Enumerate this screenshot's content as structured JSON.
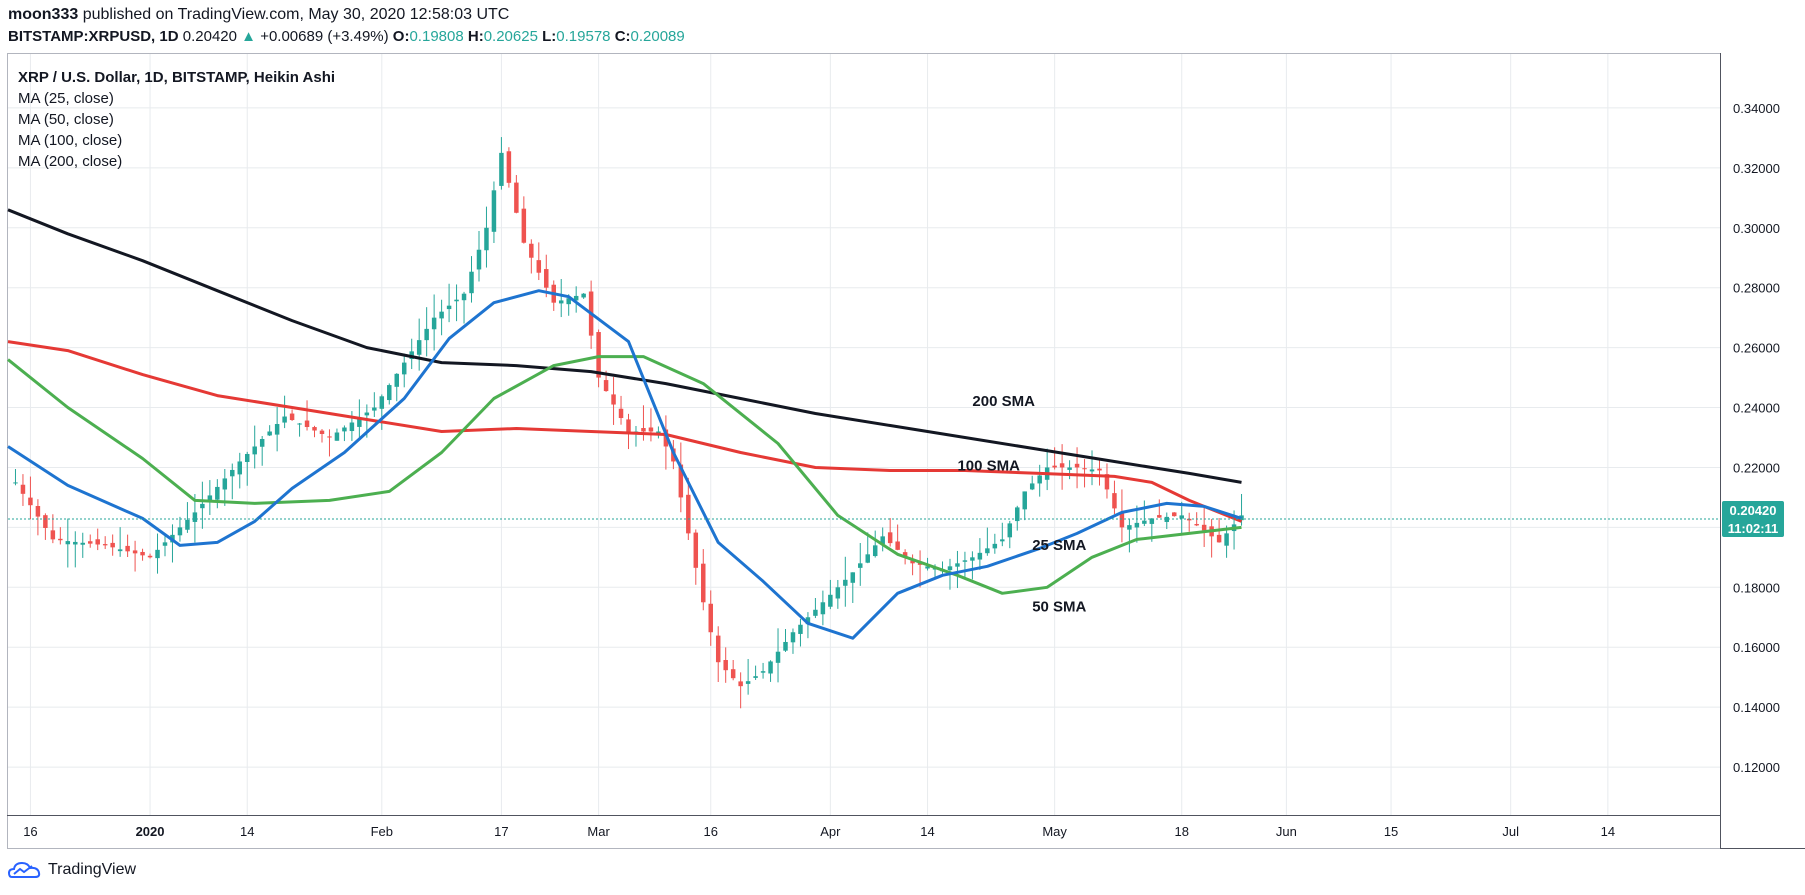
{
  "header": {
    "user": "moon333",
    "published": "published on TradingView.com, May 30, 2020 12:58:03 UTC",
    "symbol": "BITSTAMP:XRPUSD, 1D",
    "last": "0.20420",
    "change": "+0.00689 (+3.49%)",
    "o_label": "O:",
    "o": "0.19808",
    "h_label": "H:",
    "h": "0.20625",
    "l_label": "L:",
    "l": "0.19578",
    "c_label": "C:",
    "c": "0.20089"
  },
  "legend": {
    "main": "XRP / U.S. Dollar, 1D, BITSTAMP, Heikin Ashi",
    "ma25": "MA (25, close)",
    "ma50": "MA (50, close)",
    "ma100": "MA (100, close)",
    "ma200": "MA (200, close)"
  },
  "footer": {
    "brand": "TradingView"
  },
  "price_tag": {
    "price": "0.20420",
    "countdown": "11:02:11"
  },
  "colors": {
    "up": "#26a69a",
    "down": "#ef5350",
    "ma25": "#1e74d0",
    "ma50": "#4caf50",
    "ma100": "#e53935",
    "ma200": "#131722",
    "grid": "#e8ebee",
    "price_line": "#26a69a"
  },
  "chart_data": {
    "type": "candlestick",
    "subtype": "Heikin Ashi",
    "y_ticks": [
      "0.12000",
      "0.14000",
      "0.16000",
      "0.18000",
      "0.20000",
      "0.22000",
      "0.24000",
      "0.26000",
      "0.28000",
      "0.30000",
      "0.32000",
      "0.34000"
    ],
    "x_ticks": [
      {
        "label": "16",
        "day": 0
      },
      {
        "label": "2020",
        "day": 16,
        "bold": true
      },
      {
        "label": "14",
        "day": 29
      },
      {
        "label": "Feb",
        "day": 47
      },
      {
        "label": "17",
        "day": 63
      },
      {
        "label": "Mar",
        "day": 76
      },
      {
        "label": "16",
        "day": 91
      },
      {
        "label": "Apr",
        "day": 107
      },
      {
        "label": "14",
        "day": 120
      },
      {
        "label": "May",
        "day": 137
      },
      {
        "label": "18",
        "day": 154
      },
      {
        "label": "Jun",
        "day": 168
      },
      {
        "label": "15",
        "day": 182
      },
      {
        "label": "Jul",
        "day": 198
      },
      {
        "label": "14",
        "day": 211
      }
    ],
    "ylim": [
      0.104,
      0.358
    ],
    "x_range_days": [
      -3,
      226
    ],
    "annotations": [
      {
        "text": "200 SMA",
        "day": 126,
        "price": 0.2405
      },
      {
        "text": "100 SMA",
        "day": 124,
        "price": 0.219
      },
      {
        "text": "25 SMA",
        "day": 134,
        "price": 0.1925
      },
      {
        "text": "50 SMA",
        "day": 134,
        "price": 0.172
      }
    ],
    "ma_series": [
      {
        "name": "MA 200",
        "key": "ma200",
        "points": [
          [
            -3,
            0.306
          ],
          [
            5,
            0.298
          ],
          [
            15,
            0.289
          ],
          [
            25,
            0.279
          ],
          [
            35,
            0.269
          ],
          [
            45,
            0.26
          ],
          [
            55,
            0.255
          ],
          [
            65,
            0.254
          ],
          [
            75,
            0.252
          ],
          [
            85,
            0.248
          ],
          [
            95,
            0.243
          ],
          [
            105,
            0.238
          ],
          [
            115,
            0.234
          ],
          [
            125,
            0.23
          ],
          [
            135,
            0.226
          ],
          [
            145,
            0.222
          ],
          [
            155,
            0.218
          ],
          [
            162,
            0.215
          ]
        ]
      },
      {
        "name": "MA 100",
        "key": "ma100",
        "points": [
          [
            -3,
            0.262
          ],
          [
            5,
            0.259
          ],
          [
            15,
            0.251
          ],
          [
            25,
            0.244
          ],
          [
            35,
            0.24
          ],
          [
            45,
            0.236
          ],
          [
            55,
            0.232
          ],
          [
            65,
            0.233
          ],
          [
            75,
            0.232
          ],
          [
            85,
            0.231
          ],
          [
            95,
            0.225
          ],
          [
            105,
            0.22
          ],
          [
            115,
            0.219
          ],
          [
            125,
            0.219
          ],
          [
            135,
            0.218
          ],
          [
            145,
            0.217
          ],
          [
            150,
            0.215
          ],
          [
            155,
            0.209
          ],
          [
            162,
            0.202
          ]
        ]
      },
      {
        "name": "MA 50",
        "key": "ma50",
        "points": [
          [
            -3,
            0.256
          ],
          [
            5,
            0.24
          ],
          [
            15,
            0.223
          ],
          [
            22,
            0.209
          ],
          [
            30,
            0.208
          ],
          [
            40,
            0.209
          ],
          [
            48,
            0.212
          ],
          [
            55,
            0.225
          ],
          [
            62,
            0.243
          ],
          [
            70,
            0.254
          ],
          [
            76,
            0.257
          ],
          [
            82,
            0.257
          ],
          [
            90,
            0.248
          ],
          [
            100,
            0.228
          ],
          [
            108,
            0.204
          ],
          [
            116,
            0.191
          ],
          [
            124,
            0.184
          ],
          [
            130,
            0.178
          ],
          [
            136,
            0.18
          ],
          [
            142,
            0.19
          ],
          [
            148,
            0.196
          ],
          [
            155,
            0.198
          ],
          [
            162,
            0.2
          ]
        ]
      },
      {
        "name": "MA 25",
        "key": "ma25",
        "points": [
          [
            -3,
            0.227
          ],
          [
            5,
            0.214
          ],
          [
            15,
            0.203
          ],
          [
            20,
            0.194
          ],
          [
            25,
            0.195
          ],
          [
            30,
            0.202
          ],
          [
            35,
            0.213
          ],
          [
            42,
            0.225
          ],
          [
            50,
            0.243
          ],
          [
            56,
            0.263
          ],
          [
            62,
            0.275
          ],
          [
            68,
            0.279
          ],
          [
            72,
            0.277
          ],
          [
            80,
            0.262
          ],
          [
            86,
            0.225
          ],
          [
            92,
            0.195
          ],
          [
            98,
            0.182
          ],
          [
            104,
            0.168
          ],
          [
            110,
            0.163
          ],
          [
            116,
            0.178
          ],
          [
            122,
            0.184
          ],
          [
            128,
            0.187
          ],
          [
            135,
            0.193
          ],
          [
            140,
            0.198
          ],
          [
            146,
            0.205
          ],
          [
            152,
            0.208
          ],
          [
            157,
            0.207
          ],
          [
            162,
            0.203
          ]
        ]
      }
    ]
  }
}
